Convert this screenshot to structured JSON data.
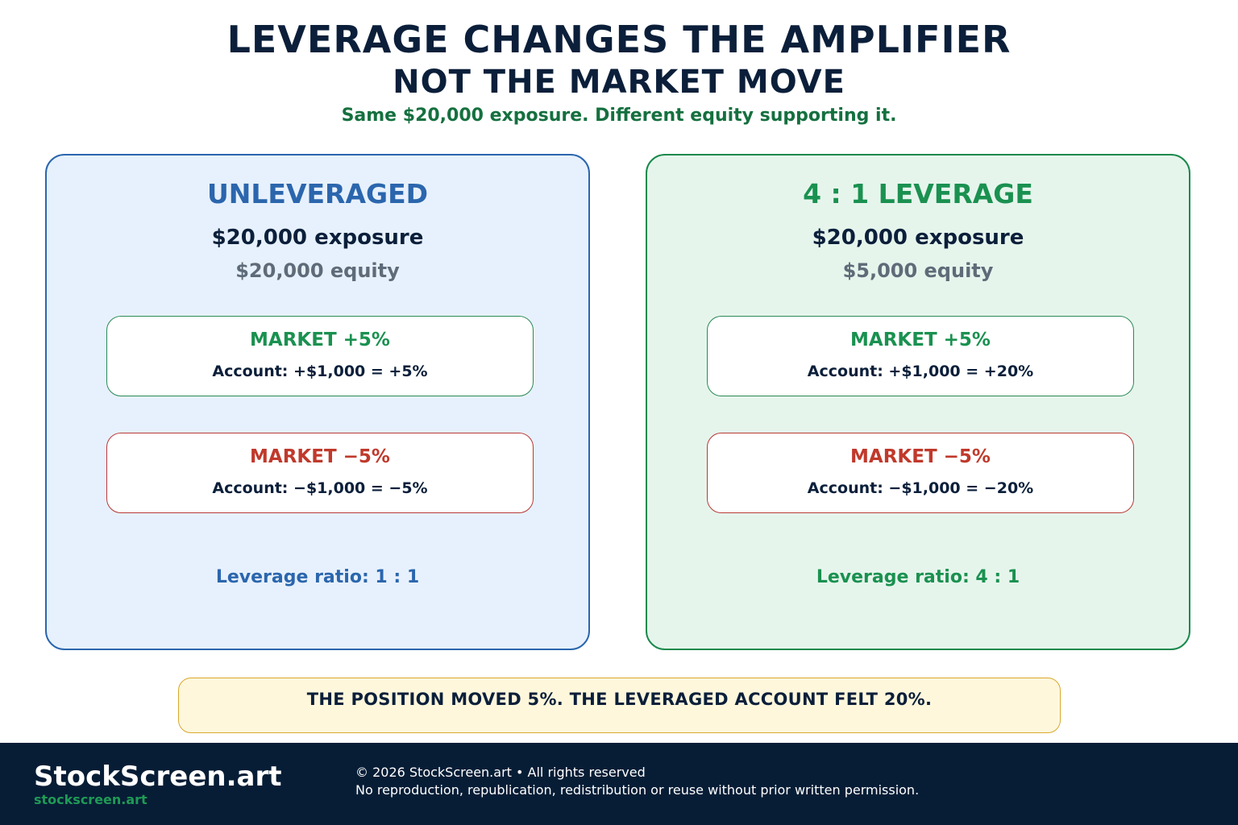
{
  "header": {
    "title_line1": "LEVERAGE CHANGES THE AMPLIFIER",
    "title_line2": "NOT THE MARKET MOVE",
    "subtitle": "Same $20,000 exposure. Different equity supporting it."
  },
  "panels": [
    {
      "title": "UNLEVERAGED",
      "exposure": "$20,000 exposure",
      "equity": "$20,000 equity",
      "up": {
        "head": "MARKET +5%",
        "detail": "Account: +$1,000 = +5%"
      },
      "down": {
        "head": "MARKET −5%",
        "detail": "Account: −$1,000 = −5%"
      },
      "ratio": "Leverage ratio: 1 : 1"
    },
    {
      "title": "4 : 1 LEVERAGE",
      "exposure": "$20,000 exposure",
      "equity": "$5,000 equity",
      "up": {
        "head": "MARKET +5%",
        "detail": "Account: +$1,000 = +20%"
      },
      "down": {
        "head": "MARKET −5%",
        "detail": "Account: −$1,000 = −20%"
      },
      "ratio": "Leverage ratio: 4 : 1"
    }
  ],
  "callout": "THE POSITION MOVED 5%. THE LEVERAGED ACCOUNT FELT 20%.",
  "footer": {
    "brand": "StockScreen.art",
    "url": "stockscreen.art",
    "copyright": "© 2026 StockScreen.art • All rights reserved",
    "notice": "No reproduction, republication, redistribution or reuse without prior written permission."
  },
  "colors": {
    "navy": "#0b1f3a",
    "blue_accent": "#2b66ad",
    "green_accent": "#1a9150",
    "red_accent": "#c0392b",
    "blue_panel_bg": "#e7f1fd",
    "green_panel_bg": "#e6f5ec",
    "callout_bg": "#fff7dc",
    "footer_bg": "#071d36"
  }
}
